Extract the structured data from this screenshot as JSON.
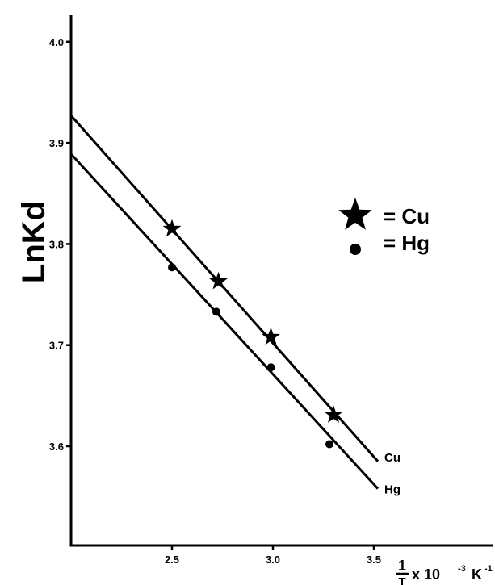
{
  "chart_data": {
    "type": "scatter",
    "ylabel": "LnKd",
    "xlabel": {
      "numerator": "1",
      "denominator": "T",
      "multiplier": "x 10",
      "exponent": "-3",
      "unit": "K",
      "unit_exponent": "-1"
    },
    "xlim": [
      2.0,
      3.5
    ],
    "ylim": [
      3.5,
      4.03
    ],
    "x_ticks": [
      {
        "value": 2.5,
        "label": "2.5"
      },
      {
        "value": 3.0,
        "label": "3.0"
      },
      {
        "value": 3.5,
        "label": "3.5"
      }
    ],
    "y_ticks": [
      {
        "value": 3.6,
        "label": "3.6"
      },
      {
        "value": 3.7,
        "label": "3.7"
      },
      {
        "value": 3.8,
        "label": "3.8"
      },
      {
        "value": 3.9,
        "label": "3.9"
      },
      {
        "value": 4.0,
        "label": "4.0"
      }
    ],
    "grid": false,
    "legend_position": "right",
    "series": [
      {
        "name": "Cu",
        "marker": "star",
        "legend_text": "= Cu",
        "line_label": "Cu",
        "x": [
          2.5,
          2.73,
          2.99,
          3.3
        ],
        "y": [
          3.815,
          3.763,
          3.708,
          3.631
        ],
        "fit": [
          [
            2.0,
            3.927
          ],
          [
            3.52,
            3.585
          ]
        ]
      },
      {
        "name": "Hg",
        "marker": "circle",
        "legend_text": "= Hg",
        "line_label": "Hg",
        "x": [
          2.5,
          2.72,
          2.99,
          3.28
        ],
        "y": [
          3.777,
          3.733,
          3.678,
          3.602
        ],
        "fit": [
          [
            2.0,
            3.889
          ],
          [
            3.52,
            3.558
          ]
        ]
      }
    ]
  }
}
